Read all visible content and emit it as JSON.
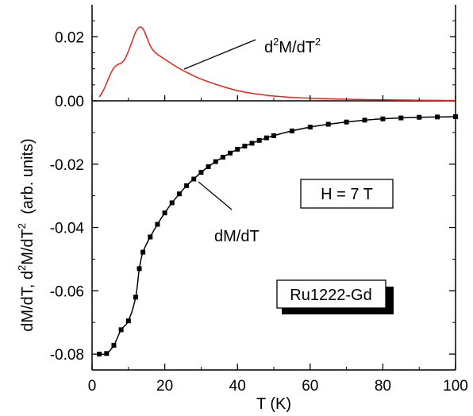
{
  "chart_data": [
    {
      "type": "line",
      "panel": "upper",
      "xlim": [
        0,
        100
      ],
      "ylim": [
        0,
        0.03
      ],
      "ytick_labels": [
        "0.00",
        "0.02"
      ],
      "yticks": [
        0,
        0.02
      ],
      "annotation": {
        "base": "d",
        "sup1": "2",
        "mid": "M/dT",
        "sup2": "2"
      },
      "series": [
        {
          "color": "#e8231e",
          "x": [
            2,
            3,
            4,
            5,
            6,
            7,
            8,
            9,
            10,
            11,
            12,
            13,
            14,
            15,
            16,
            17,
            18,
            20,
            22,
            25,
            28,
            30,
            35,
            40,
            45,
            50,
            60,
            70,
            80,
            90,
            100
          ],
          "y": [
            0.0012,
            0.003,
            0.0055,
            0.0082,
            0.0103,
            0.0113,
            0.0118,
            0.013,
            0.0155,
            0.0185,
            0.0215,
            0.023,
            0.0225,
            0.02,
            0.0172,
            0.0155,
            0.0145,
            0.013,
            0.0115,
            0.0095,
            0.0078,
            0.0068,
            0.0048,
            0.0032,
            0.0022,
            0.0015,
            0.0008,
            0.0005,
            0.0003,
            0.0002,
            0.0001
          ]
        }
      ]
    },
    {
      "type": "line",
      "panel": "lower",
      "xlim": [
        0,
        100
      ],
      "ylim": [
        -0.085,
        0.0
      ],
      "xticks": [
        0,
        20,
        40,
        60,
        80,
        100
      ],
      "xtick_labels": [
        "0",
        "20",
        "40",
        "60",
        "80",
        "100"
      ],
      "yticks": [
        -0.08,
        -0.06,
        -0.04,
        -0.02
      ],
      "ytick_labels": [
        "-0.08",
        "-0.06",
        "-0.04",
        "-0.02"
      ],
      "xlabel": "T (K)",
      "ylabel": {
        "p1": "dM/dT,  d",
        "sup1": "2",
        "p2": "M/dT",
        "sup2": "2",
        "p3": "  (arb. units)"
      },
      "annotation": "dM/dT",
      "boxes": {
        "field": "H = 7 T",
        "sample": "Ru1222-Gd"
      },
      "series": [
        {
          "color": "#000000",
          "marker": "square",
          "x": [
            2,
            4,
            6,
            8,
            10,
            12,
            13,
            14,
            16,
            18,
            20,
            22,
            24,
            26,
            28,
            30,
            32,
            34,
            36,
            38,
            40,
            42,
            44,
            46,
            48,
            50,
            55,
            60,
            65,
            70,
            75,
            80,
            85,
            90,
            95,
            100
          ],
          "y": [
            -0.08,
            -0.0798,
            -0.0772,
            -0.0723,
            -0.0695,
            -0.062,
            -0.053,
            -0.0478,
            -0.043,
            -0.039,
            -0.0354,
            -0.0322,
            -0.0294,
            -0.0268,
            -0.0247,
            -0.0226,
            -0.0208,
            -0.0192,
            -0.0178,
            -0.0165,
            -0.0153,
            -0.0143,
            -0.0134,
            -0.0125,
            -0.0117,
            -0.011,
            -0.0095,
            -0.0083,
            -0.0074,
            -0.0067,
            -0.0061,
            -0.0057,
            -0.0054,
            -0.0052,
            -0.0051,
            -0.005
          ]
        }
      ]
    }
  ]
}
